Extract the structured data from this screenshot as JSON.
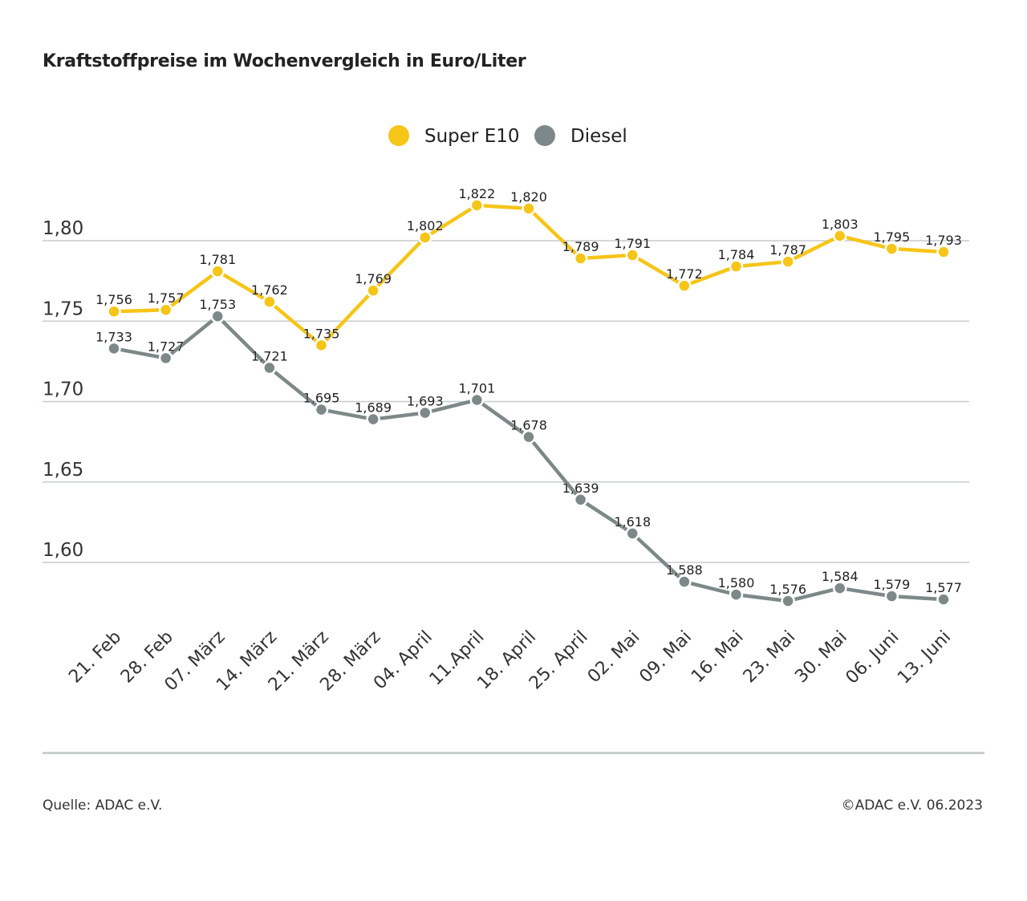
{
  "title": "Kraftstoffpreise im Wochenvergleich in Euro/Liter",
  "footer": {
    "source": "Quelle: ADAC e.V.",
    "copyright": "©ADAC e.V. 06.2023"
  },
  "chart_data": {
    "type": "line",
    "title": "Kraftstoffpreise im Wochenvergleich in Euro/Liter",
    "xlabel": "",
    "ylabel": "",
    "categories": [
      "21. Feb",
      "28. Feb",
      "07. März",
      "14. März",
      "21. März",
      "28. März",
      "04. April",
      "11.April",
      "18. April",
      "25. April",
      "02. Mai",
      "09. Mai",
      "16. Mai",
      "23. Mai",
      "30. Mai",
      "06. Juni",
      "13. Juni"
    ],
    "yticks": [
      1.6,
      1.65,
      1.7,
      1.75,
      1.8
    ],
    "ytick_labels": [
      "1,60",
      "1,65",
      "1,70",
      "1,75",
      "1,80"
    ],
    "ylim": [
      1.57,
      1.83
    ],
    "grid": true,
    "legend_position": "top-center",
    "series": [
      {
        "name": "Super E10",
        "color": "#f5c518",
        "values": [
          1.756,
          1.757,
          1.781,
          1.762,
          1.735,
          1.769,
          1.802,
          1.822,
          1.82,
          1.789,
          1.791,
          1.772,
          1.784,
          1.787,
          1.803,
          1.795,
          1.793
        ],
        "labels": [
          "1,756",
          "1,757",
          "1,781",
          "1,762",
          "1,735",
          "1,769",
          "1,802",
          "1,822",
          "1,820",
          "1,789",
          "1,791",
          "1,772",
          "1,784",
          "1,787",
          "1,803",
          "1,795",
          "1,793"
        ]
      },
      {
        "name": "Diesel",
        "color": "#7d8988",
        "values": [
          1.733,
          1.727,
          1.753,
          1.721,
          1.695,
          1.689,
          1.693,
          1.701,
          1.678,
          1.639,
          1.618,
          1.588,
          1.58,
          1.576,
          1.584,
          1.579,
          1.577
        ],
        "labels": [
          "1,733",
          "1,727",
          "1,753",
          "1,721",
          "1,695",
          "1,689",
          "1,693",
          "1,701",
          "1,678",
          "1,639",
          "1,618",
          "1,588",
          "1,580",
          "1,576",
          "1,584",
          "1,579",
          "1,577"
        ]
      }
    ]
  }
}
